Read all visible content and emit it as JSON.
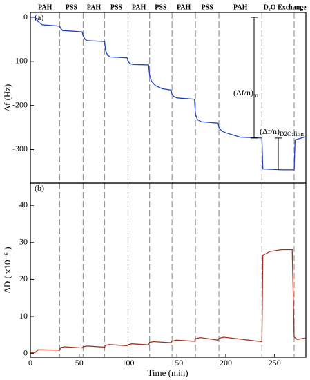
{
  "chart_data": {
    "type": "line",
    "x_label": "Time (min)",
    "xlim": [
      0,
      282
    ],
    "xticks": [
      0,
      50,
      100,
      150,
      200,
      250
    ],
    "sections": [
      "PAH",
      "PSS",
      "PAH",
      "PSS",
      "PAH",
      "PSS",
      "PAH",
      "PSS",
      "PAH",
      "D₂O Exchange"
    ],
    "section_bounds": [
      30,
      54,
      76,
      100,
      122,
      145,
      169,
      193,
      237,
      270
    ],
    "panels": [
      {
        "label": "(a)",
        "y_label": "Δf (Hz)",
        "ylim": [
          -376,
          11
        ],
        "yticks": [
          0,
          -100,
          -200,
          -300
        ],
        "annotations": [
          {
            "text": "(Δf/n)",
            "sub": "m"
          },
          {
            "text": "(Δf/n)",
            "sub": "D2O:film"
          }
        ],
        "series": [
          {
            "color": "#1f3fc4",
            "x": [
              0,
              5,
              8,
              12,
              30,
              31,
              33,
              53,
              54,
              56,
              58,
              76,
              77,
              79,
              82,
              99,
              100,
              102,
              105,
              121,
              122,
              124,
              128,
              135,
              144,
              145,
              147,
              150,
              168,
              169,
              171,
              175,
              192,
              193,
              196,
              200,
              215,
              237,
              238,
              258,
              270,
              271,
              282
            ],
            "values": [
              0,
              0,
              -10,
              -17,
              -20,
              -25,
              -30,
              -33,
              -42,
              -50,
              -53,
              -55,
              -75,
              -86,
              -90,
              -92,
              -100,
              -105,
              -107,
              -108,
              -130,
              -145,
              -155,
              -162,
              -165,
              -175,
              -180,
              -183,
              -186,
              -220,
              -232,
              -237,
              -240,
              -250,
              -258,
              -262,
              -272,
              -274,
              -344,
              -346,
              -346,
              -278,
              -271
            ]
          }
        ]
      },
      {
        "label": "(b)",
        "y_label": "ΔD ( x10⁻⁶ )",
        "ylim": [
          -1,
          46
        ],
        "yticks": [
          0,
          10,
          20,
          30,
          40
        ],
        "series": [
          {
            "color": "#a3301f",
            "x": [
              0,
              5,
              8,
              30,
              31,
              35,
              53,
              54,
              58,
              76,
              77,
              81,
              99,
              100,
              104,
              121,
              122,
              126,
              144,
              145,
              149,
              168,
              169,
              174,
              192,
              193,
              198,
              237,
              238,
              245,
              257,
              268,
              270,
              273,
              282
            ],
            "values": [
              0.2,
              0.3,
              1,
              0.9,
              1.6,
              1.8,
              1.5,
              1.8,
              2,
              1.7,
              2.2,
              2.4,
              2.1,
              2.4,
              2.6,
              2.3,
              3,
              3.2,
              2.9,
              3.3,
              3.6,
              3.3,
              4,
              4.3,
              3.6,
              4.1,
              4.4,
              3.2,
              26.5,
              27.5,
              28,
              28,
              4.5,
              3.8,
              4.2
            ]
          }
        ]
      }
    ]
  }
}
